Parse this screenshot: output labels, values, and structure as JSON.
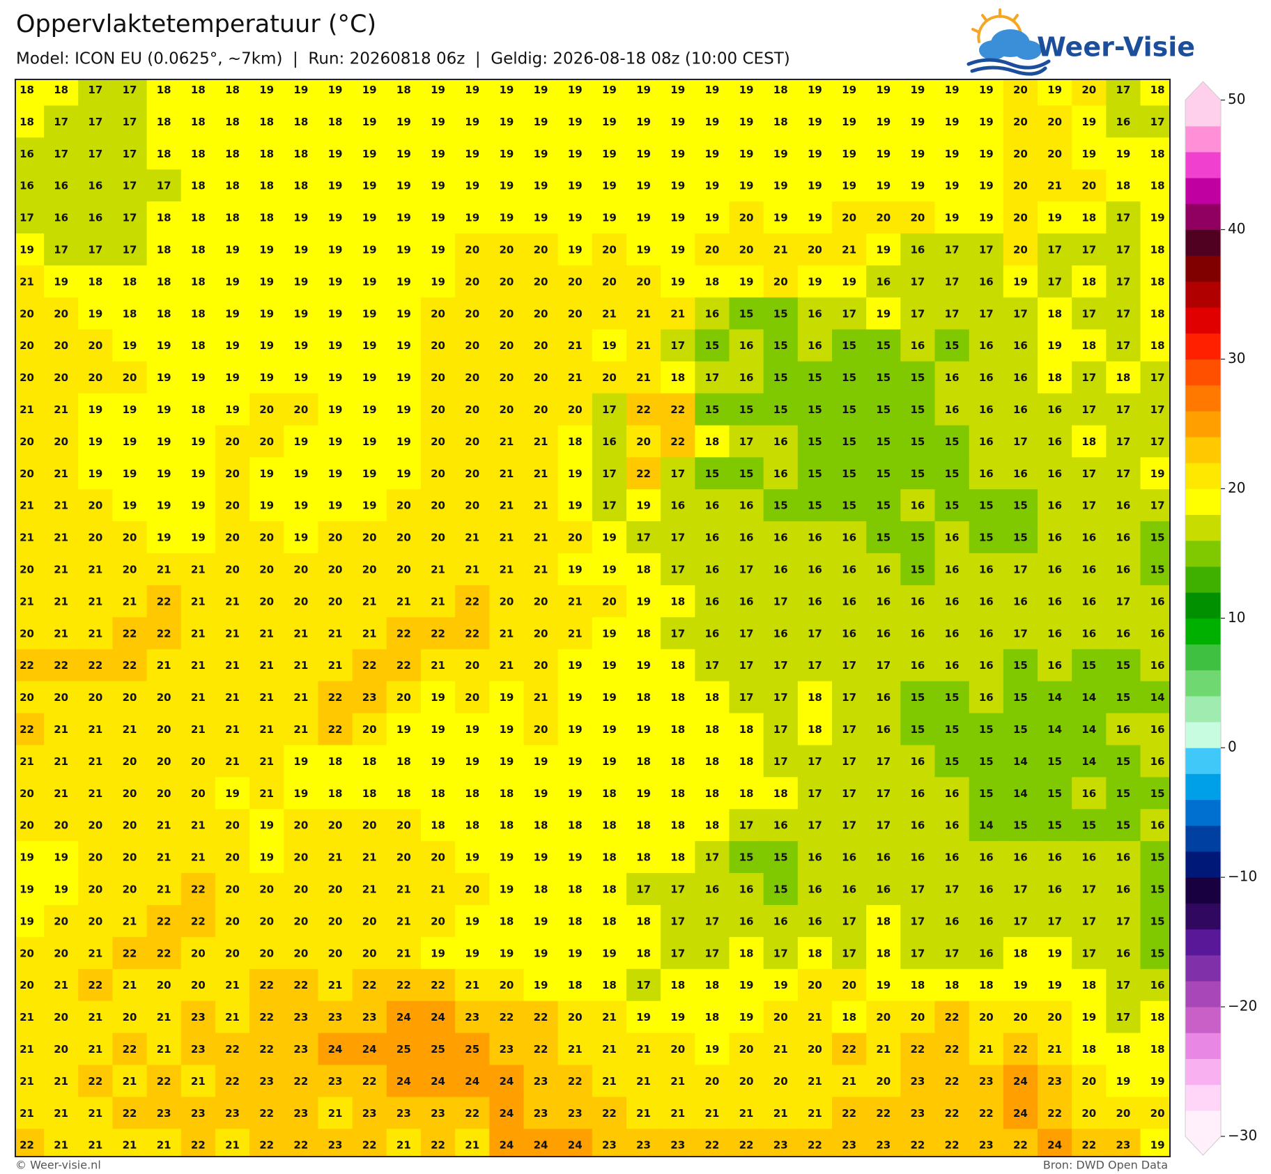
{
  "header": {
    "title": "Oppervlaktetemperatuur (°C)",
    "subtitle": "Model: ICON EU (0.0625°, ~7km)  |  Run: 20260818 06z  |  Geldig: 2026-08-18 08z (10:00 CEST)"
  },
  "logo": {
    "text": "Weer-Visie"
  },
  "map": {
    "grid": [
      [
        18,
        18,
        17,
        17,
        18,
        18,
        18,
        19,
        19,
        19,
        19,
        18,
        19,
        19,
        19,
        19,
        19,
        19,
        19,
        19,
        19,
        19,
        18,
        19,
        19,
        19,
        19,
        19,
        19,
        20,
        19,
        20,
        17,
        18
      ],
      [
        18,
        17,
        17,
        17,
        18,
        18,
        18,
        18,
        18,
        18,
        19,
        19,
        19,
        19,
        19,
        19,
        19,
        19,
        19,
        19,
        19,
        19,
        18,
        19,
        19,
        19,
        19,
        19,
        19,
        20,
        20,
        19,
        16,
        17
      ],
      [
        16,
        17,
        17,
        17,
        18,
        18,
        18,
        18,
        18,
        19,
        19,
        19,
        19,
        19,
        19,
        19,
        19,
        19,
        19,
        19,
        19,
        19,
        19,
        19,
        19,
        19,
        19,
        19,
        19,
        20,
        20,
        19,
        19,
        18
      ],
      [
        16,
        16,
        16,
        17,
        17,
        18,
        18,
        18,
        18,
        19,
        19,
        19,
        19,
        19,
        19,
        19,
        19,
        19,
        19,
        19,
        19,
        19,
        19,
        19,
        19,
        19,
        19,
        19,
        19,
        20,
        21,
        20,
        18,
        18
      ],
      [
        17,
        16,
        16,
        17,
        18,
        18,
        18,
        18,
        19,
        19,
        19,
        19,
        19,
        19,
        19,
        19,
        19,
        19,
        19,
        19,
        19,
        20,
        19,
        19,
        20,
        20,
        20,
        19,
        19,
        20,
        19,
        18,
        17,
        19
      ],
      [
        19,
        17,
        17,
        17,
        18,
        18,
        19,
        19,
        19,
        19,
        19,
        19,
        19,
        20,
        20,
        20,
        19,
        20,
        19,
        19,
        20,
        20,
        21,
        20,
        21,
        19,
        16,
        17,
        17,
        20,
        17,
        17,
        17,
        18
      ],
      [
        21,
        19,
        18,
        18,
        18,
        18,
        19,
        19,
        19,
        19,
        19,
        19,
        19,
        20,
        20,
        20,
        20,
        20,
        20,
        19,
        18,
        19,
        20,
        19,
        19,
        16,
        17,
        17,
        16,
        19,
        17,
        18,
        17,
        18
      ],
      [
        20,
        20,
        19,
        18,
        18,
        18,
        19,
        19,
        19,
        19,
        19,
        19,
        20,
        20,
        20,
        20,
        20,
        21,
        21,
        21,
        16,
        15,
        15,
        16,
        17,
        19,
        17,
        17,
        17,
        17,
        18,
        17,
        17,
        18
      ],
      [
        20,
        20,
        20,
        19,
        19,
        18,
        19,
        19,
        19,
        19,
        19,
        19,
        20,
        20,
        20,
        20,
        21,
        19,
        21,
        17,
        15,
        16,
        15,
        16,
        15,
        15,
        16,
        15,
        16,
        16,
        19,
        18,
        17,
        18
      ],
      [
        20,
        20,
        20,
        20,
        19,
        19,
        19,
        19,
        19,
        19,
        19,
        19,
        20,
        20,
        20,
        20,
        21,
        20,
        21,
        18,
        17,
        16,
        15,
        15,
        15,
        15,
        15,
        16,
        16,
        16,
        18,
        17,
        18,
        17
      ],
      [
        21,
        21,
        19,
        19,
        19,
        18,
        19,
        20,
        20,
        19,
        19,
        19,
        20,
        20,
        20,
        20,
        20,
        17,
        22,
        22,
        15,
        15,
        15,
        15,
        15,
        15,
        15,
        16,
        16,
        16,
        16,
        17,
        17,
        17
      ],
      [
        20,
        20,
        19,
        19,
        19,
        19,
        20,
        20,
        19,
        19,
        19,
        19,
        20,
        20,
        21,
        21,
        18,
        16,
        20,
        22,
        18,
        17,
        16,
        15,
        15,
        15,
        15,
        15,
        16,
        17,
        16,
        18,
        17,
        17
      ],
      [
        20,
        21,
        19,
        19,
        19,
        19,
        20,
        19,
        19,
        19,
        19,
        19,
        20,
        20,
        21,
        21,
        19,
        17,
        22,
        17,
        15,
        15,
        16,
        15,
        15,
        15,
        15,
        15,
        16,
        16,
        16,
        17,
        17,
        19
      ],
      [
        21,
        21,
        20,
        19,
        19,
        19,
        20,
        19,
        19,
        19,
        19,
        20,
        20,
        20,
        21,
        21,
        19,
        17,
        19,
        16,
        16,
        16,
        15,
        15,
        15,
        15,
        16,
        15,
        15,
        15,
        16,
        17,
        16,
        17
      ],
      [
        21,
        21,
        20,
        20,
        19,
        19,
        20,
        20,
        19,
        20,
        20,
        20,
        20,
        21,
        21,
        21,
        20,
        19,
        17,
        17,
        16,
        16,
        16,
        16,
        16,
        15,
        15,
        16,
        15,
        15,
        16,
        16,
        16,
        15
      ],
      [
        20,
        21,
        21,
        20,
        21,
        21,
        20,
        20,
        20,
        20,
        20,
        20,
        21,
        21,
        21,
        21,
        19,
        19,
        18,
        17,
        16,
        17,
        16,
        16,
        16,
        16,
        15,
        16,
        16,
        17,
        16,
        16,
        16,
        15
      ],
      [
        21,
        21,
        21,
        21,
        22,
        21,
        21,
        20,
        20,
        20,
        21,
        21,
        21,
        22,
        20,
        20,
        21,
        20,
        19,
        18,
        16,
        16,
        17,
        16,
        16,
        16,
        16,
        16,
        16,
        16,
        16,
        16,
        17,
        16
      ],
      [
        20,
        21,
        21,
        22,
        22,
        21,
        21,
        21,
        21,
        21,
        21,
        22,
        22,
        22,
        21,
        20,
        21,
        19,
        18,
        17,
        16,
        17,
        16,
        17,
        16,
        16,
        16,
        16,
        16,
        17,
        16,
        16,
        16,
        16
      ],
      [
        22,
        22,
        22,
        22,
        21,
        21,
        21,
        21,
        21,
        21,
        22,
        22,
        21,
        20,
        21,
        20,
        19,
        19,
        19,
        18,
        17,
        17,
        17,
        17,
        17,
        17,
        16,
        16,
        16,
        15,
        16,
        15,
        15,
        16
      ],
      [
        20,
        20,
        20,
        20,
        20,
        21,
        21,
        21,
        21,
        22,
        23,
        20,
        19,
        20,
        19,
        21,
        19,
        19,
        18,
        18,
        18,
        17,
        17,
        18,
        17,
        16,
        15,
        15,
        16,
        15,
        14,
        14,
        15,
        14
      ],
      [
        22,
        21,
        21,
        21,
        20,
        21,
        21,
        21,
        21,
        22,
        20,
        19,
        19,
        19,
        19,
        20,
        19,
        19,
        19,
        18,
        18,
        18,
        17,
        18,
        17,
        16,
        15,
        15,
        15,
        15,
        14,
        14,
        16,
        16
      ],
      [
        21,
        21,
        21,
        20,
        20,
        20,
        21,
        21,
        19,
        18,
        18,
        18,
        19,
        19,
        19,
        19,
        19,
        19,
        18,
        18,
        18,
        18,
        17,
        17,
        17,
        17,
        16,
        15,
        15,
        14,
        15,
        14,
        15,
        16
      ],
      [
        20,
        21,
        21,
        20,
        20,
        20,
        19,
        21,
        19,
        18,
        18,
        18,
        18,
        18,
        18,
        19,
        19,
        18,
        19,
        18,
        18,
        18,
        18,
        17,
        17,
        17,
        16,
        16,
        15,
        14,
        15,
        16,
        15,
        15
      ],
      [
        20,
        20,
        20,
        20,
        21,
        21,
        20,
        19,
        20,
        20,
        20,
        20,
        18,
        18,
        18,
        18,
        18,
        18,
        18,
        18,
        18,
        17,
        16,
        17,
        17,
        17,
        16,
        16,
        14,
        15,
        15,
        15,
        15,
        16
      ],
      [
        19,
        19,
        20,
        20,
        21,
        21,
        20,
        19,
        20,
        21,
        21,
        20,
        20,
        19,
        19,
        19,
        19,
        18,
        18,
        18,
        17,
        15,
        15,
        16,
        16,
        16,
        16,
        16,
        16,
        16,
        16,
        16,
        16,
        15
      ],
      [
        19,
        19,
        20,
        20,
        21,
        22,
        20,
        20,
        20,
        20,
        21,
        21,
        21,
        20,
        19,
        18,
        18,
        18,
        17,
        17,
        16,
        16,
        15,
        16,
        16,
        16,
        17,
        17,
        16,
        17,
        16,
        17,
        16,
        15
      ],
      [
        19,
        20,
        20,
        21,
        22,
        22,
        20,
        20,
        20,
        20,
        20,
        21,
        20,
        19,
        18,
        19,
        18,
        18,
        18,
        17,
        17,
        16,
        16,
        16,
        17,
        18,
        17,
        16,
        16,
        17,
        17,
        17,
        17,
        15
      ],
      [
        20,
        20,
        21,
        22,
        22,
        20,
        20,
        20,
        20,
        20,
        20,
        21,
        19,
        19,
        19,
        19,
        19,
        19,
        18,
        17,
        17,
        18,
        17,
        18,
        17,
        18,
        17,
        17,
        16,
        18,
        19,
        17,
        16,
        15
      ],
      [
        20,
        21,
        22,
        21,
        20,
        20,
        21,
        22,
        22,
        21,
        22,
        22,
        22,
        21,
        20,
        19,
        18,
        18,
        17,
        18,
        18,
        19,
        19,
        20,
        20,
        19,
        18,
        18,
        18,
        19,
        19,
        18,
        17,
        16
      ],
      [
        21,
        20,
        21,
        20,
        21,
        23,
        21,
        22,
        23,
        23,
        23,
        24,
        24,
        23,
        22,
        22,
        20,
        21,
        19,
        19,
        18,
        19,
        20,
        21,
        18,
        20,
        20,
        22,
        20,
        20,
        20,
        19,
        17,
        18
      ],
      [
        21,
        20,
        21,
        22,
        21,
        23,
        22,
        22,
        23,
        24,
        24,
        25,
        25,
        25,
        23,
        22,
        21,
        21,
        21,
        20,
        19,
        20,
        21,
        20,
        22,
        21,
        22,
        22,
        21,
        22,
        21,
        18,
        18,
        18
      ],
      [
        21,
        21,
        22,
        21,
        22,
        21,
        22,
        23,
        22,
        23,
        22,
        24,
        24,
        24,
        24,
        23,
        22,
        21,
        21,
        21,
        20,
        20,
        20,
        21,
        21,
        20,
        23,
        22,
        23,
        24,
        23,
        20,
        19,
        19
      ],
      [
        21,
        21,
        21,
        22,
        23,
        23,
        23,
        22,
        23,
        21,
        23,
        23,
        23,
        22,
        24,
        23,
        23,
        22,
        21,
        21,
        21,
        21,
        21,
        21,
        22,
        22,
        23,
        22,
        22,
        24,
        22,
        20,
        20,
        20
      ],
      [
        22,
        21,
        21,
        21,
        21,
        22,
        21,
        22,
        22,
        23,
        22,
        21,
        22,
        21,
        24,
        24,
        24,
        23,
        23,
        23,
        22,
        22,
        23,
        22,
        23,
        23,
        22,
        22,
        23,
        22,
        24,
        22,
        23,
        19
      ]
    ]
  },
  "colorbar": {
    "lim": [
      -30,
      50
    ],
    "ticks": [
      50,
      40,
      30,
      20,
      10,
      0,
      {
        "value": -10,
        "label": "−10"
      },
      {
        "value": -20,
        "label": "−20"
      },
      {
        "value": -30,
        "label": "−30"
      }
    ],
    "colors": [
      "#fff0fc",
      "#ffd6f8",
      "#f8b0f0",
      "#e888e4",
      "#c860c8",
      "#a848b8",
      "#8030a8",
      "#581898",
      "#300860",
      "#180040",
      "#001878",
      "#0040a0",
      "#0070d0",
      "#00a0e8",
      "#40c8f8",
      "#c8fce0",
      "#a0ecb0",
      "#70d870",
      "#40c040",
      "#00b000",
      "#009000",
      "#40b000",
      "#80c800",
      "#c8dc00",
      "#ffff00",
      "#ffe800",
      "#ffc800",
      "#ffa000",
      "#ff7800",
      "#ff5000",
      "#ff2000",
      "#e00000",
      "#b00000",
      "#800000",
      "#500020",
      "#900060",
      "#c000a0",
      "#f040d0",
      "#ff90d8",
      "#ffd0ec"
    ]
  },
  "footer": {
    "left": "© Weer-visie.nl",
    "right": "Bron: DWD Open Data"
  }
}
